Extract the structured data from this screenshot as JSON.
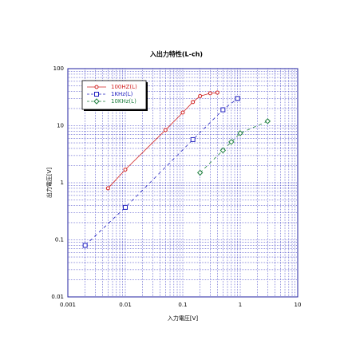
{
  "chart_data": {
    "type": "line",
    "title": "入出力特性(L-ch)",
    "x_label": "入力電圧[V]",
    "y_label": "出力電圧[V]",
    "x_log": true,
    "y_log": true,
    "grid": true,
    "legend": "upper left",
    "xlim": [
      0.001,
      10
    ],
    "ylim": [
      0.01,
      100
    ],
    "xticks": [
      0.001,
      0.01,
      0.1,
      1,
      10
    ],
    "yticks": [
      0.01,
      0.1,
      1,
      10,
      100
    ],
    "series": [
      {
        "name": "100HZ(L)",
        "color": "#d02020",
        "marker": "circle",
        "dashed": false,
        "x": [
          0.005,
          0.01,
          0.05,
          0.1,
          0.15,
          0.2,
          0.3,
          0.4
        ],
        "values": [
          0.8,
          1.7,
          8.4,
          17,
          26,
          33,
          37,
          38
        ]
      },
      {
        "name": "1KHz(L)",
        "color": "#2020c0",
        "marker": "square",
        "dashed": true,
        "x": [
          0.002,
          0.01,
          0.15,
          0.5,
          0.9
        ],
        "values": [
          0.08,
          0.37,
          5.7,
          19,
          30
        ]
      },
      {
        "name": "10KHz(L)",
        "color": "#208040",
        "marker": "diamond",
        "dashed": true,
        "x": [
          0.2,
          0.5,
          0.7,
          1,
          3
        ],
        "values": [
          1.5,
          3.7,
          5.2,
          7.4,
          12
        ]
      }
    ]
  }
}
